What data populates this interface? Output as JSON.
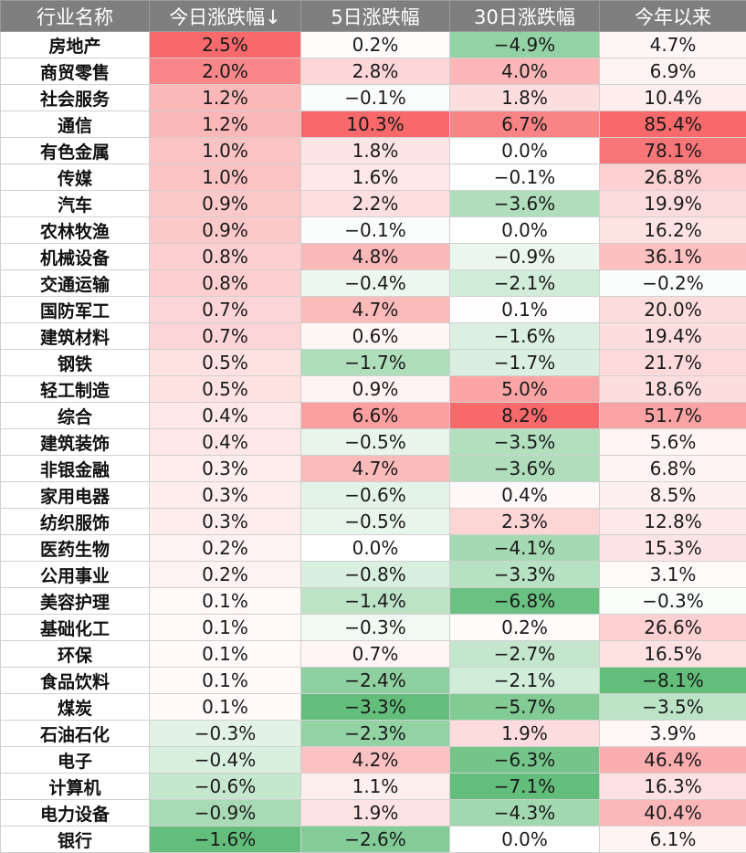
{
  "headers": [
    "行业名称",
    "今日涨跌幅↓",
    "5日涨跌幅",
    "30日涨跌幅",
    "今年以来"
  ],
  "colors": {
    "header_bg": "#7f7f7f",
    "up_max": "#f8696b",
    "down_max": "#63be7b",
    "neutral": "#ffffff"
  },
  "rows": [
    {
      "name": "房地产",
      "values": [
        "2.5%",
        "0.2%",
        "−4.9%",
        "4.7%"
      ]
    },
    {
      "name": "商贸零售",
      "values": [
        "2.0%",
        "2.8%",
        "4.0%",
        "6.9%"
      ]
    },
    {
      "name": "社会服务",
      "values": [
        "1.2%",
        "−0.1%",
        "1.8%",
        "10.4%"
      ]
    },
    {
      "name": "通信",
      "values": [
        "1.2%",
        "10.3%",
        "6.7%",
        "85.4%"
      ]
    },
    {
      "name": "有色金属",
      "values": [
        "1.0%",
        "1.8%",
        "0.0%",
        "78.1%"
      ]
    },
    {
      "name": "传媒",
      "values": [
        "1.0%",
        "1.6%",
        "−0.1%",
        "26.8%"
      ]
    },
    {
      "name": "汽车",
      "values": [
        "0.9%",
        "2.2%",
        "−3.6%",
        "19.9%"
      ]
    },
    {
      "name": "农林牧渔",
      "values": [
        "0.9%",
        "−0.1%",
        "0.0%",
        "16.2%"
      ]
    },
    {
      "name": "机械设备",
      "values": [
        "0.8%",
        "4.8%",
        "−0.9%",
        "36.1%"
      ]
    },
    {
      "name": "交通运输",
      "values": [
        "0.8%",
        "−0.4%",
        "−2.1%",
        "−0.2%"
      ]
    },
    {
      "name": "国防军工",
      "values": [
        "0.7%",
        "4.7%",
        "0.1%",
        "20.0%"
      ]
    },
    {
      "name": "建筑材料",
      "values": [
        "0.7%",
        "0.6%",
        "−1.6%",
        "19.4%"
      ]
    },
    {
      "name": "钢铁",
      "values": [
        "0.5%",
        "−1.7%",
        "−1.7%",
        "21.7%"
      ]
    },
    {
      "name": "轻工制造",
      "values": [
        "0.5%",
        "0.9%",
        "5.0%",
        "18.6%"
      ]
    },
    {
      "name": "综合",
      "values": [
        "0.4%",
        "6.6%",
        "8.2%",
        "51.7%"
      ]
    },
    {
      "name": "建筑装饰",
      "values": [
        "0.4%",
        "−0.5%",
        "−3.5%",
        "5.6%"
      ]
    },
    {
      "name": "非银金融",
      "values": [
        "0.3%",
        "4.7%",
        "−3.6%",
        "6.8%"
      ]
    },
    {
      "name": "家用电器",
      "values": [
        "0.3%",
        "−0.6%",
        "0.4%",
        "8.5%"
      ]
    },
    {
      "name": "纺织服饰",
      "values": [
        "0.3%",
        "−0.5%",
        "2.3%",
        "12.8%"
      ]
    },
    {
      "name": "医药生物",
      "values": [
        "0.2%",
        "0.0%",
        "−4.1%",
        "15.3%"
      ]
    },
    {
      "name": "公用事业",
      "values": [
        "0.2%",
        "−0.8%",
        "−3.3%",
        "3.1%"
      ]
    },
    {
      "name": "美容护理",
      "values": [
        "0.1%",
        "−1.4%",
        "−6.8%",
        "−0.3%"
      ]
    },
    {
      "name": "基础化工",
      "values": [
        "0.1%",
        "−0.3%",
        "0.2%",
        "26.6%"
      ]
    },
    {
      "name": "环保",
      "values": [
        "0.1%",
        "0.7%",
        "−2.7%",
        "16.5%"
      ]
    },
    {
      "name": "食品饮料",
      "values": [
        "0.1%",
        "−2.4%",
        "−2.1%",
        "−8.1%"
      ]
    },
    {
      "name": "煤炭",
      "values": [
        "0.1%",
        "−3.3%",
        "−5.7%",
        "−3.5%"
      ]
    },
    {
      "name": "石油石化",
      "values": [
        "−0.3%",
        "−2.3%",
        "1.9%",
        "3.9%"
      ]
    },
    {
      "name": "电子",
      "values": [
        "−0.4%",
        "4.2%",
        "−6.3%",
        "46.4%"
      ]
    },
    {
      "name": "计算机",
      "values": [
        "−0.6%",
        "1.1%",
        "−7.1%",
        "16.3%"
      ]
    },
    {
      "name": "电力设备",
      "values": [
        "−0.9%",
        "1.9%",
        "−4.3%",
        "40.4%"
      ]
    },
    {
      "name": "银行",
      "values": [
        "−1.6%",
        "−2.6%",
        "0.0%",
        "6.1%"
      ]
    }
  ]
}
